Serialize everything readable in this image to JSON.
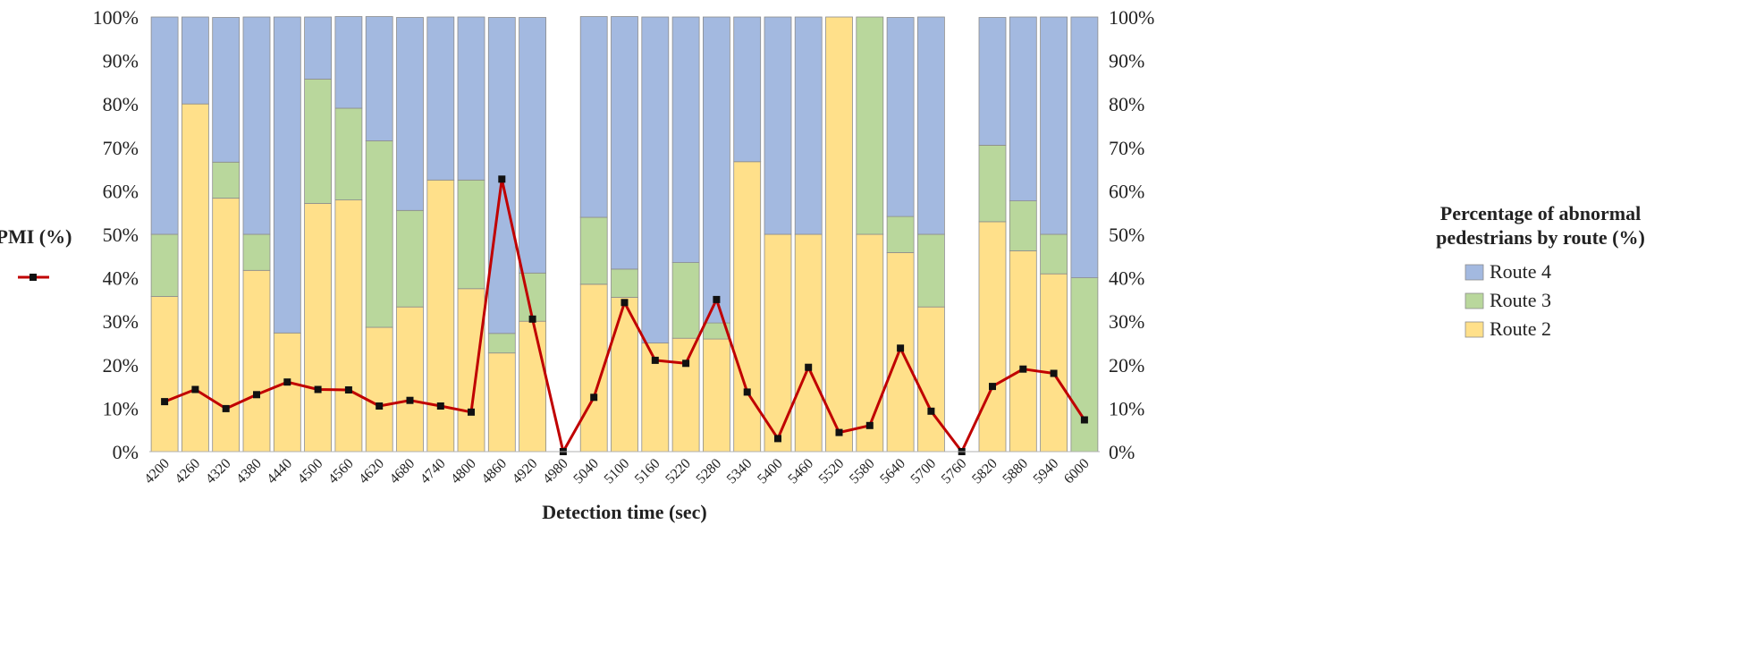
{
  "chart_data": {
    "type": "bar",
    "stacked_percent": true,
    "combo_line": true,
    "x": [
      4200,
      4260,
      4320,
      4380,
      4440,
      4500,
      4560,
      4620,
      4680,
      4740,
      4800,
      4860,
      4920,
      4980,
      5040,
      5100,
      5160,
      5220,
      5280,
      5340,
      5400,
      5460,
      5520,
      5580,
      5640,
      5700,
      5760,
      5820,
      5880,
      5940,
      6000
    ],
    "xlabel": "Detection time (sec)",
    "left_axis_label": "PMI (%)",
    "right_axis_label_lines": [
      "Percentage of abnormal",
      "pedestrians by route (%)"
    ],
    "ylim": [
      0,
      100
    ],
    "y_ticks": [
      "0%",
      "10%",
      "20%",
      "30%",
      "40%",
      "50%",
      "60%",
      "70%",
      "80%",
      "90%",
      "100%"
    ],
    "grid": false,
    "legend_placement": "right",
    "series": [
      {
        "name": "Route 2",
        "kind": "bar",
        "color": "#FFE08A",
        "values": [
          35.7,
          80,
          58.3,
          41.7,
          27.3,
          57.1,
          57.9,
          28.6,
          33.3,
          62.5,
          37.5,
          22.7,
          30,
          0,
          38.5,
          35.5,
          25,
          26.1,
          25.9,
          66.7,
          50,
          50,
          100,
          50,
          45.8,
          33.3,
          0,
          52.9,
          46.2,
          40.9,
          0
        ]
      },
      {
        "name": "Route 3",
        "kind": "bar",
        "color": "#B9D79C",
        "values": [
          14.3,
          0,
          8.3,
          8.3,
          0,
          28.6,
          21.1,
          42.9,
          22.2,
          0,
          25,
          4.5,
          11.1,
          0,
          15.4,
          6.5,
          0,
          17.4,
          3.7,
          0,
          0,
          0,
          0,
          50,
          8.3,
          16.7,
          0,
          17.6,
          11.5,
          9.1,
          40
        ]
      },
      {
        "name": "Route 4",
        "kind": "bar",
        "color": "#A3B9E0",
        "values": [
          50,
          20,
          33.3,
          50,
          72.7,
          14.3,
          21.1,
          28.6,
          44.4,
          37.5,
          37.5,
          72.7,
          58.8,
          0,
          46.2,
          58.1,
          75,
          56.5,
          70.4,
          33.3,
          50,
          50,
          0,
          0,
          45.8,
          50,
          0,
          29.4,
          42.3,
          50,
          60
        ]
      },
      {
        "name": "PMI (%)",
        "kind": "line",
        "color": "#C00000",
        "values": [
          11.5,
          14.3,
          9.9,
          13.1,
          16,
          14.3,
          14.2,
          10.5,
          11.8,
          10.5,
          9.1,
          62.7,
          30.5,
          0,
          12.5,
          34.3,
          21,
          20.3,
          35,
          13.7,
          3,
          19.4,
          4.4,
          6,
          23.8,
          9.3,
          0,
          15,
          19,
          18,
          7.3
        ]
      }
    ],
    "legend": [
      "Route 4",
      "Route 3",
      "Route 2"
    ]
  }
}
